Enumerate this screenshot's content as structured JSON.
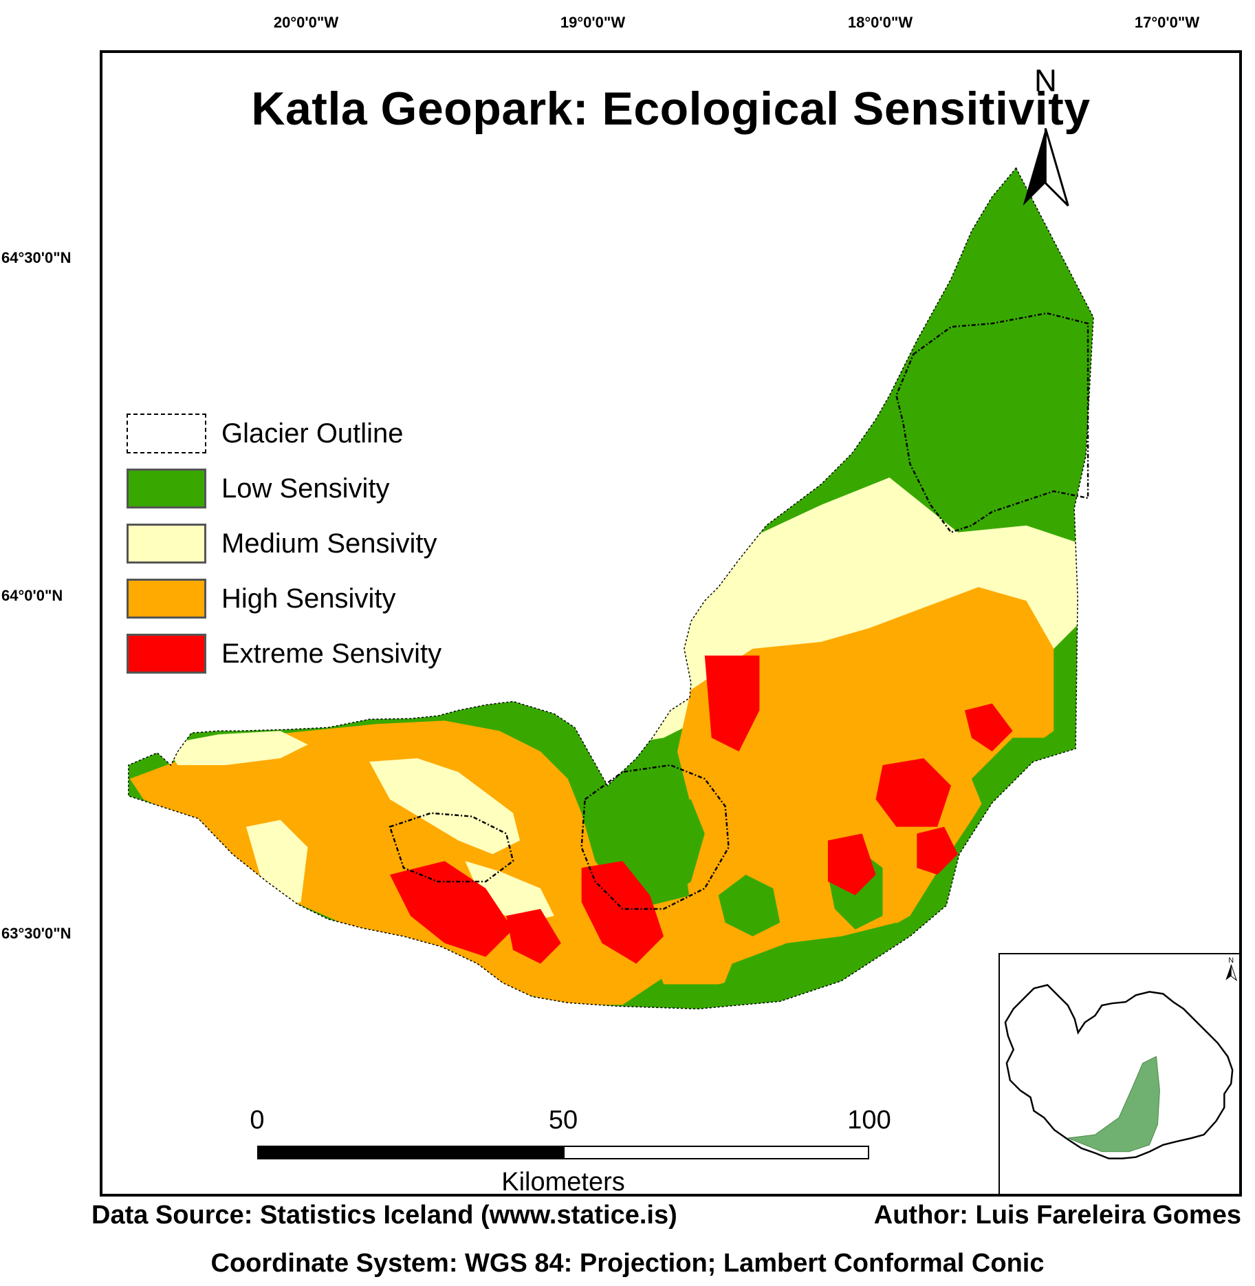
{
  "map": {
    "title": "Katla Geopark: Ecological Sensitivity",
    "longitude_labels": [
      "20°0'0\"W",
      "19°0'0\"W",
      "18°0'0\"W",
      "17°0'0\"W"
    ],
    "latitude_labels": [
      "64°30'0\"N",
      "64°0'0\"N",
      "63°30'0\"N"
    ],
    "north_arrow_label": "N",
    "inset_north_label": "N"
  },
  "legend": {
    "items": [
      {
        "label": "Glacier Outline",
        "color": "#ffffff",
        "style": "dashed"
      },
      {
        "label": "Low Sensivity",
        "color": "#38a800",
        "style": "fill"
      },
      {
        "label": "Medium Sensivity",
        "color": "#ffffbe",
        "style": "fill"
      },
      {
        "label": "High Sensivity",
        "color": "#ffaa00",
        "style": "fill"
      },
      {
        "label": "Extreme Sensivity",
        "color": "#ff0000",
        "style": "fill"
      }
    ]
  },
  "scale": {
    "ticks": [
      "0",
      "50",
      "100"
    ],
    "units": "Kilometers"
  },
  "colors": {
    "low": "#38a800",
    "medium": "#ffffbe",
    "high": "#ffaa00",
    "extreme": "#ff0000",
    "inset_region": "#70b070"
  },
  "footer": {
    "data_source": "Data Source: Statistics Iceland (www.statice.is)",
    "author": "Author: Luis Fareleira Gomes",
    "coordinate_system": "Coordinate System: WGS 84: Projection; Lambert Conformal Conic"
  }
}
